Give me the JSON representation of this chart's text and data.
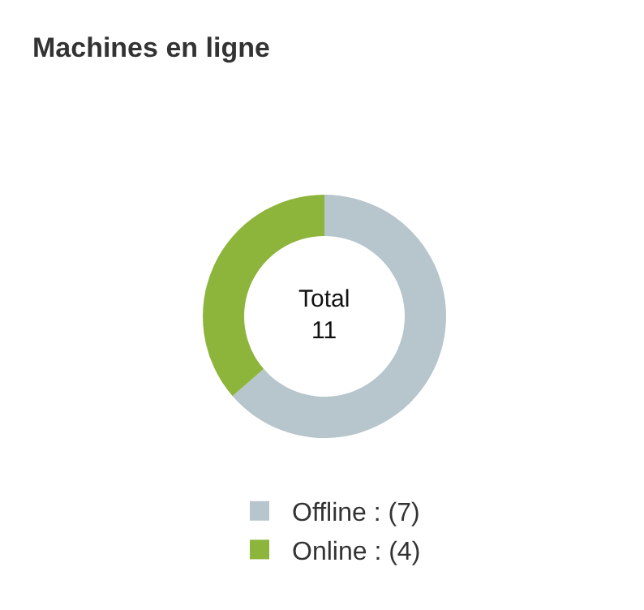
{
  "chart_data": {
    "type": "donut",
    "title": "Machines en ligne",
    "categories": [
      "Offline : (7)",
      "Online : (4)"
    ],
    "values": [
      7,
      4
    ],
    "colors": [
      "#b7c5cc",
      "#8db53c"
    ],
    "annotations": [
      "Total\n11"
    ],
    "legend": "bottom"
  }
}
